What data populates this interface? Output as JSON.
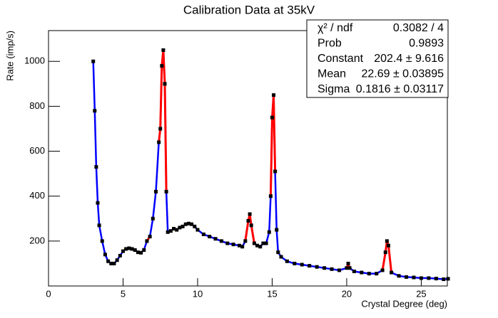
{
  "chart_data": {
    "type": "line",
    "title": "Calibration Data at 35kV",
    "x_label": "Crystal Degree (deg)",
    "y_label": "Rate (imp/s)",
    "x": [
      3.0,
      3.1,
      3.2,
      3.3,
      3.4,
      3.6,
      3.8,
      4.0,
      4.2,
      4.4,
      4.6,
      4.8,
      5.0,
      5.2,
      5.4,
      5.6,
      5.8,
      6.0,
      6.2,
      6.4,
      6.6,
      6.8,
      7.0,
      7.2,
      7.4,
      7.5,
      7.6,
      7.7,
      7.8,
      7.9,
      8.0,
      8.2,
      8.4,
      8.6,
      8.8,
      9.0,
      9.2,
      9.4,
      9.6,
      9.8,
      10.0,
      10.4,
      10.8,
      11.2,
      11.6,
      12.0,
      12.4,
      12.8,
      13.0,
      13.2,
      13.4,
      13.5,
      13.6,
      13.8,
      14.0,
      14.2,
      14.4,
      14.6,
      14.8,
      14.9,
      15.0,
      15.1,
      15.2,
      15.3,
      15.4,
      15.6,
      16.0,
      16.5,
      17.0,
      17.5,
      18.0,
      18.5,
      19.0,
      19.5,
      20.0,
      20.1,
      20.2,
      20.5,
      21.0,
      21.5,
      22.0,
      22.4,
      22.6,
      22.7,
      22.8,
      23.0,
      23.5,
      24.0,
      24.5,
      25.0,
      25.5,
      26.0,
      26.5,
      26.8
    ],
    "series": [
      {
        "color": "#0000ff",
        "values": [
          1000,
          780,
          530,
          370,
          270,
          200,
          140,
          110,
          100,
          100,
          115,
          135,
          155,
          165,
          168,
          165,
          160,
          150,
          148,
          160,
          200,
          220,
          300,
          420,
          640,
          700,
          980,
          1050,
          900,
          420,
          240,
          245,
          255,
          250,
          260,
          265,
          275,
          278,
          275,
          265,
          250,
          230,
          220,
          210,
          200,
          190,
          185,
          180,
          175,
          200,
          290,
          320,
          270,
          190,
          180,
          175,
          190,
          190,
          240,
          400,
          750,
          850,
          510,
          250,
          150,
          130,
          110,
          100,
          95,
          90,
          85,
          80,
          75,
          70,
          80,
          100,
          80,
          65,
          60,
          55,
          55,
          70,
          150,
          200,
          180,
          60,
          45,
          40,
          38,
          35,
          35,
          33,
          30,
          32
        ]
      },
      {
        "color": "#ff0000",
        "values": [
          null,
          null,
          null,
          null,
          null,
          null,
          null,
          null,
          null,
          null,
          null,
          null,
          null,
          null,
          null,
          null,
          null,
          null,
          null,
          null,
          200,
          220,
          null,
          null,
          640,
          700,
          980,
          1050,
          900,
          420,
          null,
          null,
          null,
          null,
          null,
          null,
          null,
          null,
          null,
          null,
          null,
          null,
          null,
          null,
          null,
          null,
          null,
          null,
          null,
          200,
          290,
          320,
          270,
          190,
          null,
          null,
          null,
          null,
          null,
          400,
          750,
          850,
          510,
          null,
          null,
          null,
          null,
          null,
          null,
          null,
          null,
          null,
          null,
          null,
          80,
          100,
          80,
          null,
          null,
          null,
          null,
          70,
          150,
          200,
          180,
          60,
          null,
          null,
          null,
          null,
          null,
          null,
          null,
          null
        ]
      }
    ],
    "xlim": [
      0,
      26.75
    ],
    "ylim": [
      0,
      1137
    ],
    "xticks": [
      0,
      5,
      10,
      15,
      20,
      25
    ],
    "yticks": [
      200,
      400,
      600,
      800,
      1000
    ],
    "stats_box": [
      {
        "label": "χ² / ndf",
        "value": "0.3082 / 4"
      },
      {
        "label": "Prob",
        "value": "0.9893"
      },
      {
        "label": "Constant",
        "value": "202.4 ± 9.616"
      },
      {
        "label": "Mean",
        "value": "22.69 ± 0.03895"
      },
      {
        "label": "Sigma",
        "value": "0.1816 ± 0.03117"
      }
    ]
  }
}
